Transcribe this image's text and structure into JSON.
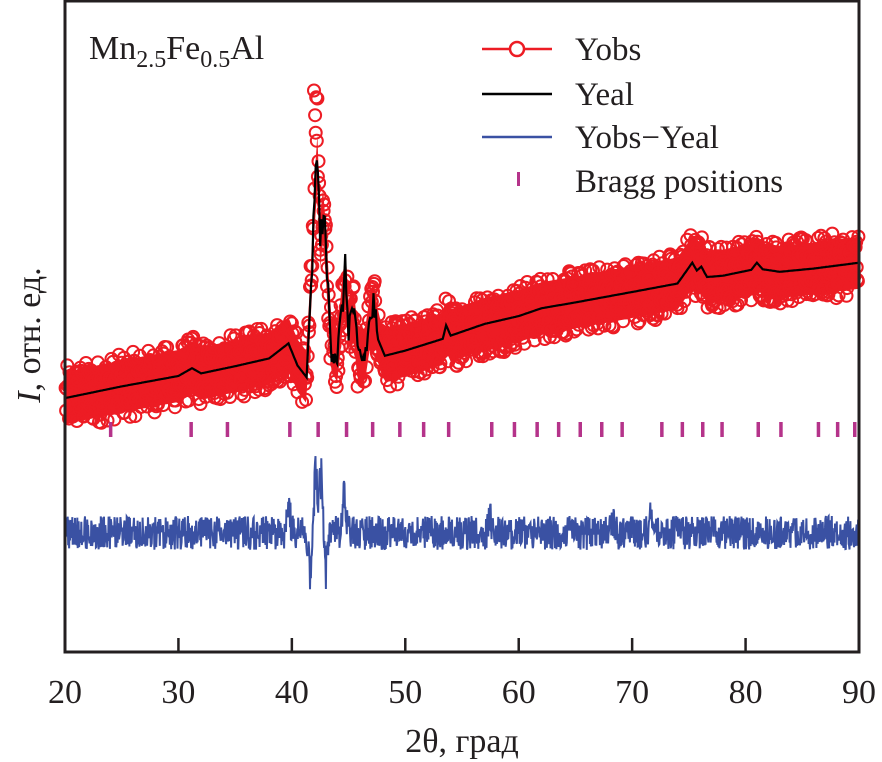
{
  "chart_data": {
    "type": "line",
    "title": "Mn2.5Fe0.5Al",
    "title_parts": [
      {
        "text": "Mn",
        "sub": false
      },
      {
        "text": "2.5",
        "sub": true
      },
      {
        "text": "Fe",
        "sub": false
      },
      {
        "text": "0.5",
        "sub": true
      },
      {
        "text": "Al",
        "sub": false
      }
    ],
    "xlabel": "2θ, град",
    "ylabel_italic": "I",
    "ylabel_rest": ", отн. ед.",
    "xlim": [
      20,
      90
    ],
    "ylim": [
      0,
      100
    ],
    "xticks": [
      20,
      30,
      40,
      50,
      60,
      70,
      80,
      90
    ],
    "xtick_labels": [
      "20",
      "30",
      "40",
      "50",
      "60",
      "70",
      "80",
      "90"
    ],
    "yticks_shown": false,
    "grid": false,
    "legend_position": "top-right",
    "colors": {
      "yobs": "#ed1c24",
      "ycal": "#000000",
      "diff": "#3a51a3",
      "bragg": "#b5338a",
      "axis": "#231f20"
    },
    "series": [
      {
        "name": "Yobs",
        "style": "open-circles-with-line",
        "description": "observed intensity, scattered about Ycal with noise amplitude ~±5 units",
        "noise_amplitude": 5,
        "peak_max": 87
      },
      {
        "name": "Yeal",
        "style": "line",
        "x": [
          20,
          25,
          30,
          31.2,
          32,
          35,
          38,
          39.7,
          40.5,
          41.3,
          41.8,
          42.2,
          42.5,
          42.8,
          43.1,
          43.5,
          44.0,
          44.4,
          44.7,
          45.0,
          45.4,
          45.8,
          46.4,
          46.9,
          47.2,
          47.6,
          48.2,
          50,
          53.3,
          53.6,
          54,
          57,
          60,
          62,
          65,
          70,
          74,
          75.3,
          75.7,
          76.1,
          76.6,
          78,
          80.5,
          81.0,
          81.5,
          83,
          86,
          90
        ],
        "y": [
          39.0,
          40.8,
          42.4,
          43.6,
          42.8,
          43.9,
          45.1,
          47.4,
          44.0,
          42.2,
          60.0,
          77.9,
          63.0,
          68.0,
          58.0,
          47.0,
          45.5,
          52.0,
          58.7,
          50.0,
          53.0,
          45.5,
          45.0,
          51.0,
          53.3,
          48.0,
          45.5,
          46.3,
          48.1,
          50.2,
          48.6,
          50.4,
          51.6,
          52.8,
          53.7,
          55.3,
          56.6,
          59.8,
          58.6,
          59.2,
          57.6,
          57.8,
          58.7,
          59.8,
          58.8,
          58.4,
          58.9,
          59.8
        ]
      },
      {
        "name": "Yobs−Yeal",
        "style": "line",
        "baseline": 18.3,
        "noise_amplitude": 2.6,
        "features": [
          {
            "x": 39.7,
            "amp": 5.0
          },
          {
            "x": 41.6,
            "amp": -9.0
          },
          {
            "x": 42.1,
            "amp": 14.0
          },
          {
            "x": 42.6,
            "amp": 11.0
          },
          {
            "x": 43.0,
            "amp": -6.0
          },
          {
            "x": 44.6,
            "amp": 8.0
          },
          {
            "x": 57.5,
            "amp": 3.0
          },
          {
            "x": 68.2,
            "amp": 3.5
          },
          {
            "x": 71.7,
            "amp": 4.5
          }
        ]
      },
      {
        "name": "Bragg positions",
        "style": "vertical-ticks",
        "x": [
          24.0,
          31.1,
          34.3,
          39.8,
          42.3,
          44.8,
          47.1,
          49.5,
          51.6,
          53.8,
          57.6,
          59.6,
          61.6,
          63.5,
          65.4,
          67.3,
          69.1,
          72.6,
          74.4,
          76.2,
          77.9,
          81.1,
          83.1,
          86.4,
          88.1,
          89.6
        ]
      }
    ],
    "legend": [
      {
        "label": "Yobs",
        "marker": "circle-line"
      },
      {
        "label": "Yeal",
        "marker": "line"
      },
      {
        "label": "Yobs−Yeal",
        "marker": "line"
      },
      {
        "label": "Bragg positions",
        "marker": "tick"
      }
    ]
  }
}
